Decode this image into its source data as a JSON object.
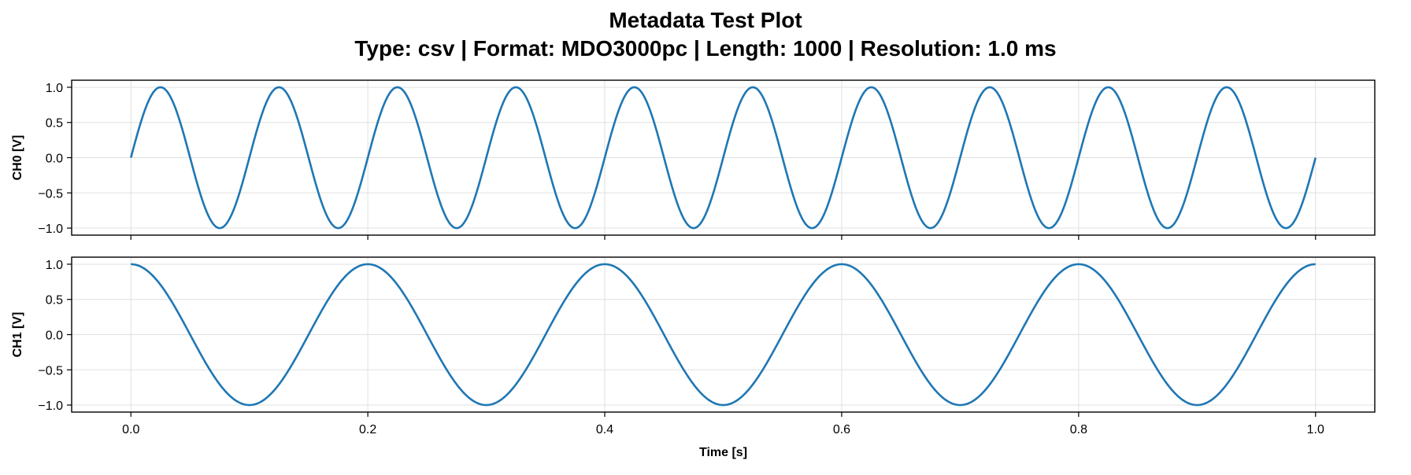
{
  "title_line1": "Metadata Test Plot",
  "title_line2": "Type: csv | Format: MDO3000pc | Length: 1000 | Resolution: 1.0 ms",
  "colors": {
    "line": "#1f77b4",
    "axes": "#000000",
    "grid": "#e0e0e0",
    "background": "#ffffff"
  },
  "chart_data": [
    {
      "type": "line",
      "ylabel": "CH0 [V]",
      "xlabel": "",
      "xlim": [
        -0.05,
        1.05
      ],
      "ylim": [
        -1.1,
        1.1
      ],
      "xticks": [
        0.0,
        0.2,
        0.4,
        0.6,
        0.8,
        1.0
      ],
      "xtick_labels_visible": false,
      "yticks": [
        -1.0,
        -0.5,
        0.0,
        0.5,
        1.0
      ],
      "ytick_labels": [
        "−1.0",
        "−0.5",
        "0.0",
        "0.5",
        "1.0"
      ],
      "grid": true,
      "series": [
        {
          "x_start": 0.0,
          "x_end": 1.0,
          "points": 1000,
          "function": "sin",
          "frequency_hz": 10,
          "amplitude": 1.0
        }
      ]
    },
    {
      "type": "line",
      "ylabel": "CH1 [V]",
      "xlabel": "Time [s]",
      "xlim": [
        -0.05,
        1.05
      ],
      "ylim": [
        -1.1,
        1.1
      ],
      "xticks": [
        0.0,
        0.2,
        0.4,
        0.6,
        0.8,
        1.0
      ],
      "xtick_labels": [
        "0.0",
        "0.2",
        "0.4",
        "0.6",
        "0.8",
        "1.0"
      ],
      "xtick_labels_visible": true,
      "yticks": [
        -1.0,
        -0.5,
        0.0,
        0.5,
        1.0
      ],
      "ytick_labels": [
        "−1.0",
        "−0.5",
        "0.0",
        "0.5",
        "1.0"
      ],
      "grid": true,
      "series": [
        {
          "x_start": 0.0,
          "x_end": 1.0,
          "points": 1000,
          "function": "cos",
          "frequency_hz": 5,
          "amplitude": 1.0
        }
      ]
    }
  ]
}
